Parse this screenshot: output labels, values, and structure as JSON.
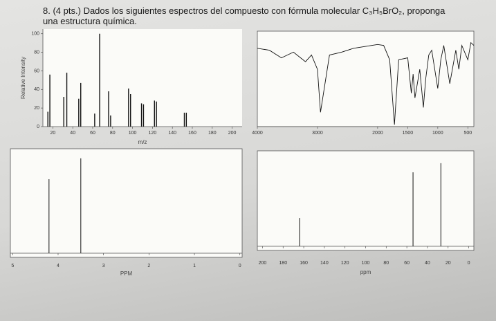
{
  "question": {
    "number": "8.",
    "points": "(4 pts.)",
    "text": "Dados los siguientes espectros del compuesto con fórmula molecular C₃H₅BrO₂, proponga una estructura química."
  },
  "chart_data": [
    {
      "type": "bar",
      "xlabel": "m/z",
      "ylabel": "Relative Intensity",
      "color": "#111",
      "x": [
        15,
        17,
        31,
        34,
        46,
        48,
        62,
        67,
        76,
        78,
        96,
        98,
        109,
        111,
        122,
        124,
        152,
        154
      ],
      "values": [
        16,
        56,
        32,
        58,
        30,
        47,
        14,
        100,
        38,
        12,
        41,
        35,
        25,
        24,
        28,
        27,
        15,
        15
      ],
      "xlim": [
        10,
        210
      ],
      "xticks": [
        20,
        40,
        60,
        80,
        100,
        120,
        140,
        160,
        180,
        200
      ],
      "ylim": [
        0,
        105
      ],
      "yticks": [
        0,
        20,
        40,
        60,
        80,
        100
      ]
    },
    {
      "type": "line",
      "color": "#111",
      "x": [
        4000,
        3800,
        3600,
        3400,
        3200,
        3100,
        3000,
        2950,
        2800,
        2600,
        2400,
        2200,
        2000,
        1900,
        1800,
        1720,
        1650,
        1500,
        1440,
        1410,
        1380,
        1300,
        1240,
        1200,
        1150,
        1100,
        1000,
        950,
        900,
        800,
        700,
        650,
        600,
        500,
        450,
        400
      ],
      "values": [
        82,
        80,
        72,
        78,
        68,
        75,
        60,
        15,
        75,
        78,
        82,
        84,
        86,
        85,
        70,
        2,
        70,
        72,
        35,
        55,
        30,
        60,
        20,
        50,
        75,
        80,
        40,
        70,
        85,
        45,
        80,
        60,
        85,
        70,
        88,
        85
      ],
      "xlim": [
        4000,
        400
      ],
      "xticks": [
        4000,
        3000,
        2000,
        1500,
        1000,
        500
      ],
      "ylim": [
        0,
        100
      ]
    },
    {
      "type": "stem",
      "xlabel": "PPM",
      "color": "#111",
      "x": [
        4.2,
        3.5
      ],
      "values": [
        0.78,
        1.0
      ],
      "xlim": [
        5.05,
        -0.05
      ],
      "xticks": [
        5,
        4,
        3,
        2,
        1,
        0
      ],
      "ylim": [
        0,
        1.05
      ]
    },
    {
      "type": "stem",
      "xlabel": "ppm",
      "color": "#111",
      "x": [
        164,
        54,
        27
      ],
      "values": [
        0.31,
        0.81,
        0.91
      ],
      "xlim": [
        205,
        -5
      ],
      "xticks": [
        200,
        180,
        160,
        140,
        120,
        100,
        80,
        60,
        40,
        20,
        0
      ],
      "ylim": [
        0,
        1
      ]
    }
  ]
}
